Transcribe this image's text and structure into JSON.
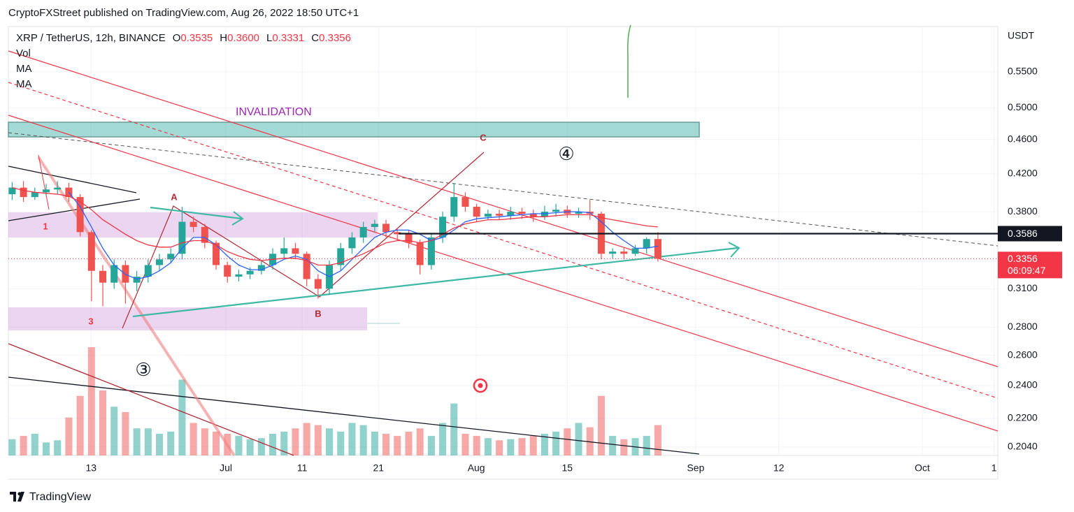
{
  "header": {
    "text": "CryptoFXStreet published on TradingView.com, Aug 26, 2022 18:50 UTC+1"
  },
  "footer": {
    "brand": "TradingView"
  },
  "chart_data": {
    "type": "candlestick",
    "title": "XRP / TetherUS, 12h, BINANCE",
    "ohlc_legend": [
      {
        "key": "O",
        "value": 0.3535,
        "label": "0.3535"
      },
      {
        "key": "H",
        "value": 0.36,
        "label": "0.3600"
      },
      {
        "key": "L",
        "value": 0.3331,
        "label": "0.3331"
      },
      {
        "key": "C",
        "value": 0.3356,
        "label": "0.3356"
      }
    ],
    "y_unit": "USDT",
    "log_scale": true,
    "grid": true,
    "ylim": [
      0.1995,
      0.62
    ],
    "yticks": [
      {
        "value": 0.55,
        "label": "0.5500"
      },
      {
        "value": 0.5,
        "label": "0.5000"
      },
      {
        "value": 0.46,
        "label": "0.4600"
      },
      {
        "value": 0.42,
        "label": "0.4200"
      },
      {
        "value": 0.38,
        "label": "0.3800"
      },
      {
        "value": 0.31,
        "label": "0.3100"
      },
      {
        "value": 0.28,
        "label": "0.2800"
      },
      {
        "value": 0.26,
        "label": "0.2600"
      },
      {
        "value": 0.24,
        "label": "0.2400"
      },
      {
        "value": 0.22,
        "label": "0.2200"
      },
      {
        "value": 0.204,
        "label": "0.2040"
      }
    ],
    "xlim": [
      0,
      262
    ],
    "xticks": [
      {
        "value": 21.9,
        "label": "13"
      },
      {
        "value": 57.6,
        "label": "Jul"
      },
      {
        "value": 77.8,
        "label": "11"
      },
      {
        "value": 98,
        "label": "21"
      },
      {
        "value": 123.9,
        "label": "Aug"
      },
      {
        "value": 148,
        "label": "15"
      },
      {
        "value": 182,
        "label": "Sep"
      },
      {
        "value": 204,
        "label": "12"
      },
      {
        "value": 242,
        "label": "Oct"
      },
      {
        "value": 261,
        "label": "1"
      }
    ],
    "x": [
      1,
      4,
      7,
      10,
      13,
      16,
      19,
      22,
      25,
      28,
      31,
      34,
      37,
      40,
      43,
      46,
      49,
      52,
      55,
      58,
      61,
      64,
      67,
      70,
      73,
      76,
      79,
      82,
      85,
      88,
      91,
      94,
      97,
      100,
      103,
      106,
      109,
      112,
      115,
      118,
      121,
      124,
      127,
      130,
      133,
      136,
      139,
      142,
      145,
      148,
      151,
      154,
      157,
      160,
      163,
      166,
      169,
      172
    ],
    "open": [
      0.398,
      0.405,
      0.395,
      0.4,
      0.403,
      0.405,
      0.395,
      0.36,
      0.325,
      0.315,
      0.33,
      0.315,
      0.32,
      0.33,
      0.335,
      0.34,
      0.37,
      0.365,
      0.35,
      0.33,
      0.32,
      0.322,
      0.325,
      0.33,
      0.34,
      0.345,
      0.34,
      0.318,
      0.31,
      0.33,
      0.345,
      0.355,
      0.365,
      0.368,
      0.36,
      0.358,
      0.35,
      0.33,
      0.355,
      0.375,
      0.395,
      0.385,
      0.375,
      0.378,
      0.376,
      0.38,
      0.378,
      0.375,
      0.38,
      0.382,
      0.378,
      0.38,
      0.378,
      0.34,
      0.342,
      0.34,
      0.345,
      0.3535
    ],
    "high": [
      0.411,
      0.412,
      0.405,
      0.409,
      0.412,
      0.41,
      0.398,
      0.362,
      0.33,
      0.335,
      0.334,
      0.325,
      0.335,
      0.34,
      0.345,
      0.385,
      0.375,
      0.368,
      0.352,
      0.333,
      0.326,
      0.328,
      0.334,
      0.345,
      0.355,
      0.35,
      0.342,
      0.322,
      0.334,
      0.35,
      0.36,
      0.37,
      0.372,
      0.372,
      0.364,
      0.362,
      0.353,
      0.358,
      0.38,
      0.41,
      0.4,
      0.388,
      0.382,
      0.382,
      0.385,
      0.384,
      0.382,
      0.386,
      0.388,
      0.386,
      0.384,
      0.392,
      0.38,
      0.345,
      0.346,
      0.348,
      0.355,
      0.36
    ],
    "low": [
      0.392,
      0.39,
      0.392,
      0.396,
      0.398,
      0.39,
      0.356,
      0.3,
      0.296,
      0.31,
      0.298,
      0.308,
      0.315,
      0.325,
      0.332,
      0.335,
      0.36,
      0.345,
      0.326,
      0.315,
      0.316,
      0.318,
      0.322,
      0.326,
      0.336,
      0.335,
      0.312,
      0.302,
      0.305,
      0.325,
      0.34,
      0.35,
      0.36,
      0.355,
      0.352,
      0.345,
      0.322,
      0.326,
      0.35,
      0.37,
      0.38,
      0.37,
      0.372,
      0.372,
      0.372,
      0.373,
      0.37,
      0.372,
      0.375,
      0.374,
      0.374,
      0.372,
      0.335,
      0.336,
      0.335,
      0.338,
      0.34,
      0.3331
    ],
    "close": [
      0.405,
      0.395,
      0.4,
      0.403,
      0.405,
      0.395,
      0.36,
      0.325,
      0.315,
      0.33,
      0.315,
      0.32,
      0.33,
      0.335,
      0.34,
      0.37,
      0.365,
      0.35,
      0.33,
      0.32,
      0.322,
      0.325,
      0.33,
      0.34,
      0.345,
      0.34,
      0.318,
      0.31,
      0.33,
      0.345,
      0.355,
      0.365,
      0.368,
      0.36,
      0.358,
      0.35,
      0.33,
      0.355,
      0.375,
      0.395,
      0.385,
      0.375,
      0.378,
      0.376,
      0.38,
      0.378,
      0.375,
      0.38,
      0.382,
      0.378,
      0.38,
      0.378,
      0.34,
      0.342,
      0.34,
      0.345,
      0.3535,
      0.3356
    ],
    "up_color": "#26a69a",
    "down_color": "#ef5350",
    "volume": {
      "name": "Vol",
      "lim": [
        0,
        100
      ],
      "values": [
        15,
        18,
        20,
        12,
        14,
        35,
        55,
        100,
        60,
        45,
        40,
        25,
        25,
        20,
        22,
        70,
        30,
        25,
        22,
        20,
        18,
        15,
        16,
        20,
        22,
        25,
        30,
        28,
        25,
        22,
        30,
        28,
        22,
        20,
        18,
        22,
        25,
        18,
        30,
        48,
        20,
        18,
        16,
        14,
        15,
        16,
        18,
        20,
        22,
        25,
        30,
        26,
        55,
        18,
        15,
        16,
        18,
        28
      ]
    },
    "series": [
      {
        "name": "MA",
        "color": "#2962ff",
        "values": [
          null,
          null,
          null,
          null,
          null,
          0.4,
          0.385,
          0.365,
          0.345,
          0.33,
          0.322,
          0.318,
          0.32,
          0.325,
          0.332,
          0.345,
          0.355,
          0.355,
          0.348,
          0.338,
          0.33,
          0.326,
          0.326,
          0.33,
          0.335,
          0.338,
          0.335,
          0.325,
          0.32,
          0.325,
          0.335,
          0.345,
          0.355,
          0.36,
          0.362,
          0.362,
          0.358,
          0.352,
          0.355,
          0.362,
          0.37,
          0.373,
          0.374,
          0.375,
          0.376,
          0.377,
          0.378,
          0.378,
          0.379,
          0.38,
          0.38,
          0.379,
          0.37,
          0.36,
          0.352,
          0.345,
          0.345,
          0.347
        ]
      },
      {
        "name": "MA",
        "color": "#f23645",
        "values": [
          0.405,
          0.402,
          0.4,
          0.399,
          0.398,
          0.396,
          0.39,
          0.382,
          0.372,
          0.365,
          0.358,
          0.352,
          0.348,
          0.346,
          0.346,
          0.35,
          0.352,
          0.352,
          0.348,
          0.342,
          0.338,
          0.335,
          0.334,
          0.335,
          0.336,
          0.336,
          0.334,
          0.33,
          0.33,
          0.332,
          0.336,
          0.34,
          0.345,
          0.35,
          0.352,
          0.352,
          0.35,
          0.352,
          0.358,
          0.364,
          0.368,
          0.37,
          0.372,
          0.372,
          0.373,
          0.374,
          0.375,
          0.375,
          0.376,
          0.377,
          0.377,
          0.377,
          0.374,
          0.372,
          0.37,
          0.368,
          0.366,
          0.365
        ]
      }
    ],
    "price_lines": [
      {
        "value": 0.3586,
        "color": "#131722"
      }
    ],
    "last_price": {
      "value": 0.3356,
      "countdown": "06:09:47",
      "color": "#f23645"
    },
    "annotations": [
      "INVALIDATION",
      "A",
      "B",
      "C",
      "1",
      "3",
      "④",
      "③"
    ]
  }
}
